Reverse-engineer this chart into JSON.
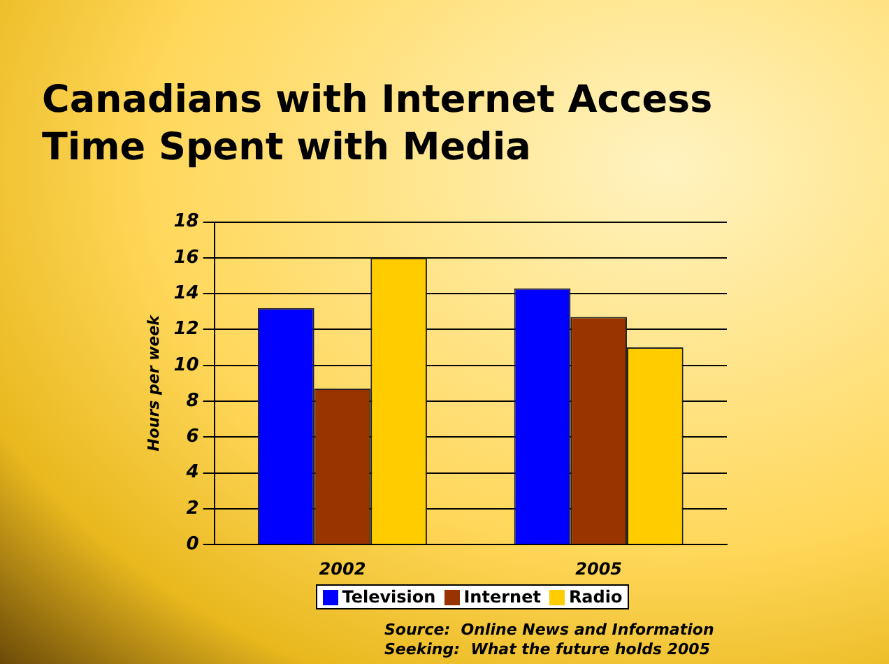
{
  "chart_data": {
    "type": "bar",
    "title": "Canadians with Internet Access\nTime Spent with Media",
    "ylabel": "Hours per week",
    "categories": [
      "2002",
      "2005"
    ],
    "series": [
      {
        "name": "Television",
        "color": "#0000ff",
        "values": [
          13.2,
          14.3
        ]
      },
      {
        "name": "Internet",
        "color": "#993300",
        "values": [
          8.7,
          12.7
        ]
      },
      {
        "name": "Radio",
        "color": "#ffcc00",
        "values": [
          16.0,
          11.0
        ]
      }
    ],
    "ylim": [
      0,
      18
    ],
    "yticks": [
      0,
      2,
      4,
      6,
      8,
      10,
      12,
      14,
      16,
      18
    ],
    "grid": "y",
    "legend": "bottom",
    "annotations": [
      "Source:  Online News and Information\nSeeking:  What the future holds 2005"
    ]
  }
}
